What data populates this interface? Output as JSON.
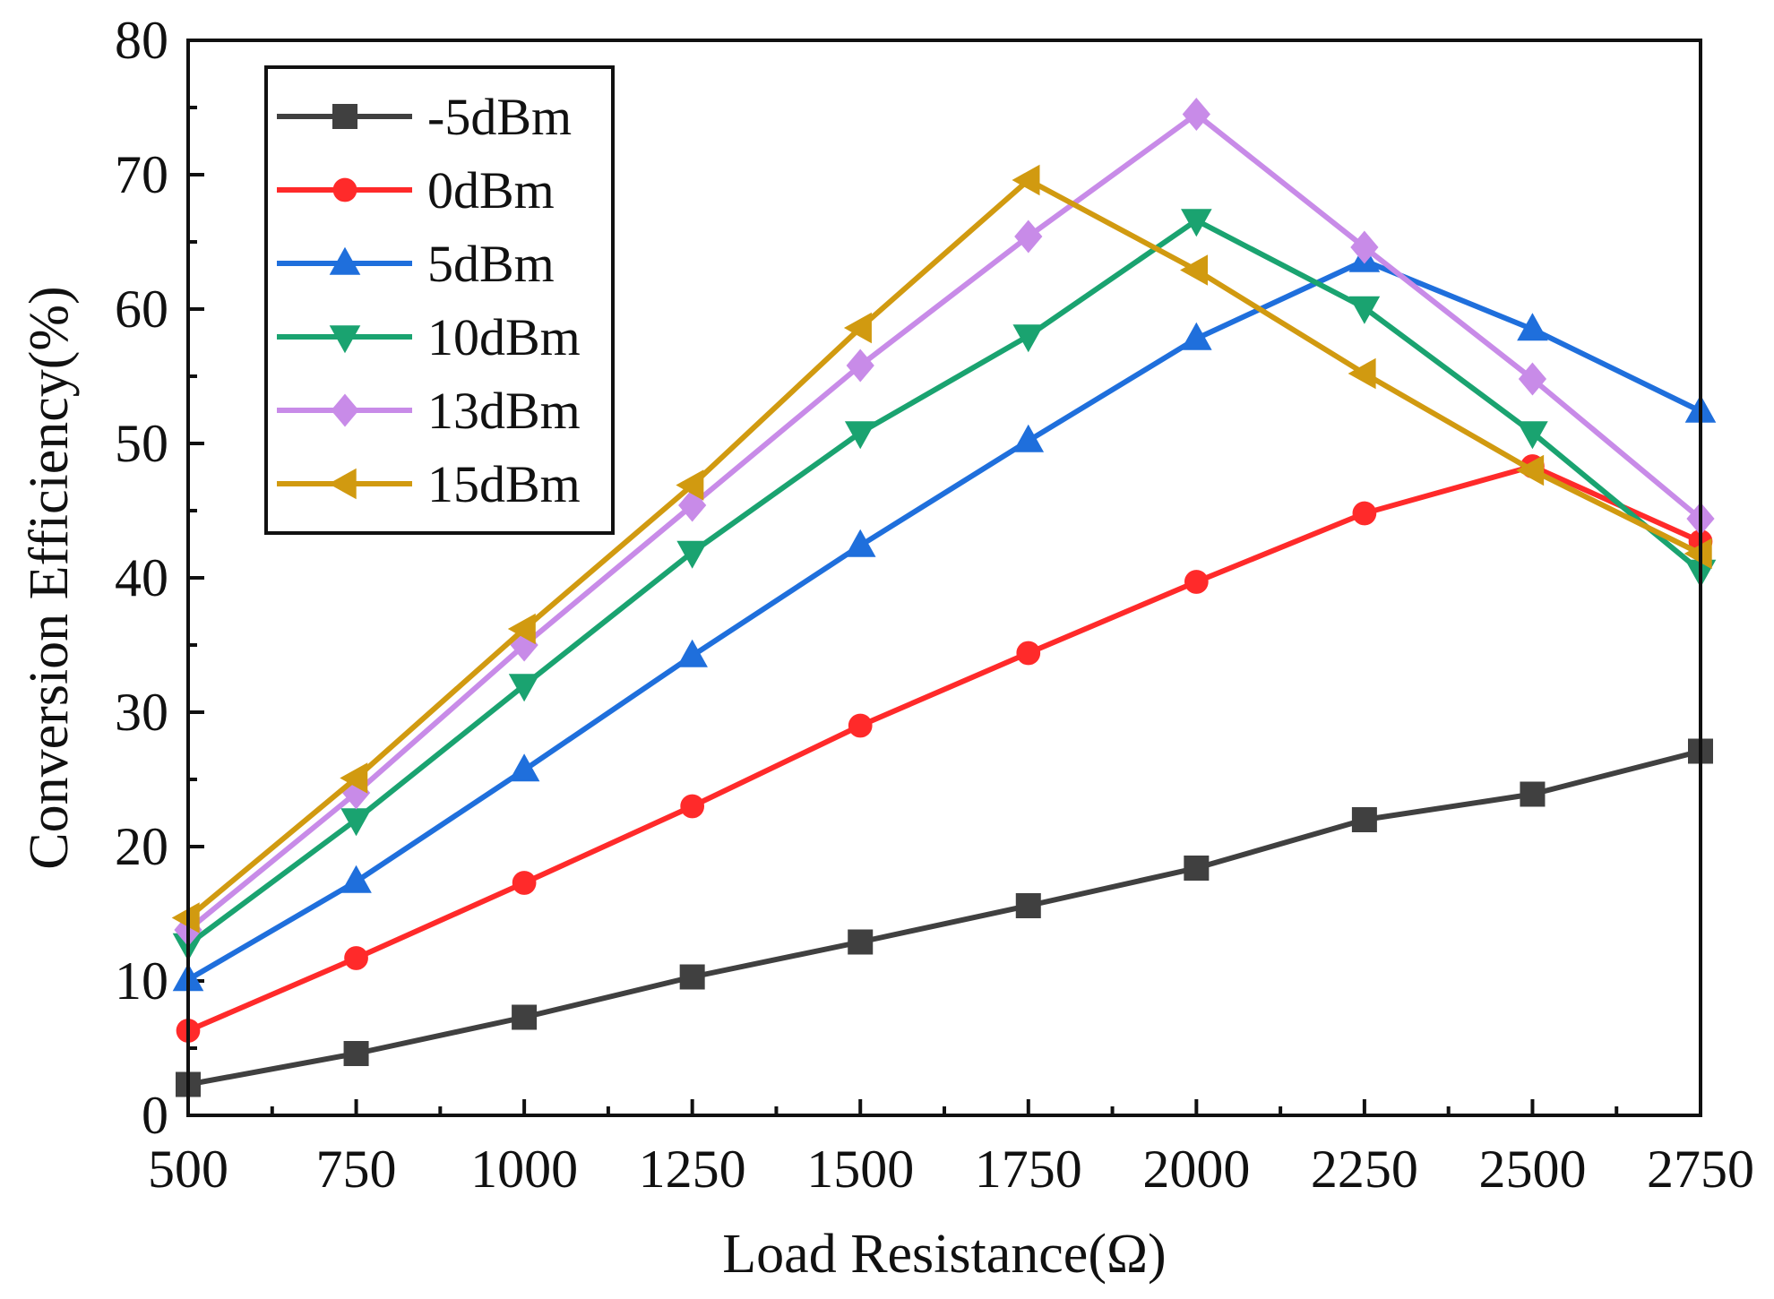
{
  "chart_data": {
    "type": "line",
    "title": "",
    "xlabel": "Load Resistance(Ω)",
    "ylabel": "Conversion Efficiency(%)",
    "xlim": [
      500,
      2750
    ],
    "ylim": [
      0,
      80
    ],
    "x": [
      500,
      750,
      1000,
      1250,
      1500,
      1750,
      2000,
      2250,
      2500,
      2750
    ],
    "x_ticks": [
      "500",
      "750",
      "1000",
      "1250",
      "1500",
      "1750",
      "2000",
      "2250",
      "2500",
      "2750"
    ],
    "y_ticks": [
      "0",
      "10",
      "20",
      "30",
      "40",
      "50",
      "60",
      "70",
      "80"
    ],
    "y_tick_values": [
      0,
      10,
      20,
      30,
      40,
      50,
      60,
      70,
      80
    ],
    "grid": false,
    "legend_position": "top-left",
    "series": [
      {
        "name": "-5dBm",
        "color": "#404040",
        "marker": "square",
        "values": [
          2.3,
          4.6,
          7.3,
          10.3,
          12.9,
          15.6,
          18.4,
          22.0,
          23.9,
          27.1
        ]
      },
      {
        "name": "0dBm",
        "color": "#ff2a2a",
        "marker": "circle",
        "values": [
          6.3,
          11.7,
          17.3,
          23.0,
          29.0,
          34.4,
          39.7,
          44.8,
          48.3,
          42.7
        ]
      },
      {
        "name": "5dBm",
        "color": "#1f6fdc",
        "marker": "triangle-up",
        "values": [
          10.1,
          17.4,
          25.7,
          34.2,
          42.4,
          50.2,
          57.8,
          63.6,
          58.5,
          52.4
        ]
      },
      {
        "name": "10dBm",
        "color": "#1aa370",
        "marker": "triangle-down",
        "values": [
          12.7,
          22.0,
          32.0,
          41.9,
          50.8,
          58.0,
          66.6,
          60.1,
          50.8,
          40.5
        ]
      },
      {
        "name": "13dBm",
        "color": "#c88be8",
        "marker": "diamond",
        "values": [
          13.8,
          24.0,
          35.0,
          45.4,
          55.8,
          65.4,
          74.5,
          64.6,
          54.8,
          44.4
        ]
      },
      {
        "name": "15dBm",
        "color": "#d19a10",
        "marker": "triangle-left",
        "values": [
          14.7,
          25.1,
          36.2,
          46.9,
          58.6,
          69.6,
          62.9,
          55.2,
          48.0,
          41.8
        ]
      }
    ]
  }
}
